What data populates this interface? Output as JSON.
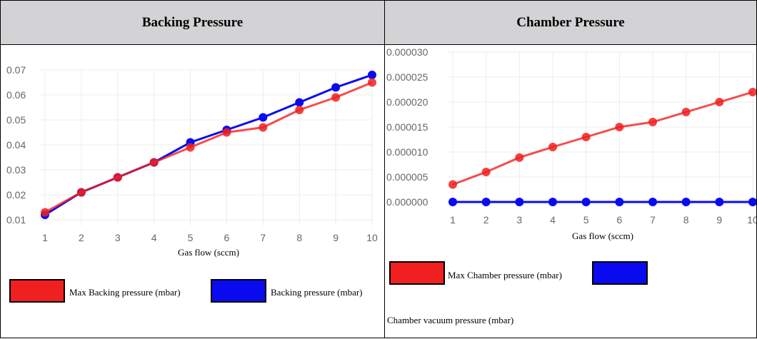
{
  "charts": [
    {
      "title": "Backing Pressure",
      "chart_data": {
        "type": "line",
        "x": [
          1,
          2,
          3,
          4,
          5,
          6,
          7,
          8,
          9,
          10
        ],
        "xlabel": "Gas flow (sccm)",
        "ylabel": "",
        "ylim": [
          0.01,
          0.07
        ],
        "yticks": [
          "0.01",
          "0.02",
          "0.03",
          "0.04",
          "0.05",
          "0.06",
          "0.07"
        ],
        "grid": true,
        "legend": "bottom",
        "series": [
          {
            "name": "Max Backing pressure (mbar)",
            "color": "#f02020",
            "values": [
              0.013,
              0.021,
              0.027,
              0.033,
              0.039,
              0.045,
              0.047,
              0.054,
              0.059,
              0.065
            ]
          },
          {
            "name": "Backing pressure (mbar)",
            "color": "#0a0af0",
            "values": [
              0.012,
              0.021,
              0.027,
              0.033,
              0.041,
              0.046,
              0.051,
              0.057,
              0.063,
              0.068
            ]
          }
        ]
      }
    },
    {
      "title": "Chamber Pressure",
      "chart_data": {
        "type": "line",
        "x": [
          1,
          2,
          3,
          4,
          5,
          6,
          7,
          8,
          9,
          10
        ],
        "xlabel": "Gas flow (sccm)",
        "ylabel": "",
        "ylim": [
          0,
          3e-05
        ],
        "yticks": [
          "0.000000",
          "0.000005",
          "0.000010",
          "0.000015",
          "0.000020",
          "0.000025",
          "0.000030"
        ],
        "grid": true,
        "legend": "bottom",
        "series": [
          {
            "name": "Max Chamber pressure (mbar)",
            "color": "#f02020",
            "values": [
              3.5e-06,
              6e-06,
              8.9e-06,
              1.1e-05,
              1.3e-05,
              1.5e-05,
              1.6e-05,
              1.8e-05,
              2e-05,
              2.2e-05
            ]
          },
          {
            "name": "Chamber vacuum pressure (mbar)",
            "color": "#0a0af0",
            "values": [
              0,
              0,
              0,
              0,
              0,
              0,
              0,
              0,
              0,
              0
            ]
          }
        ]
      }
    }
  ]
}
